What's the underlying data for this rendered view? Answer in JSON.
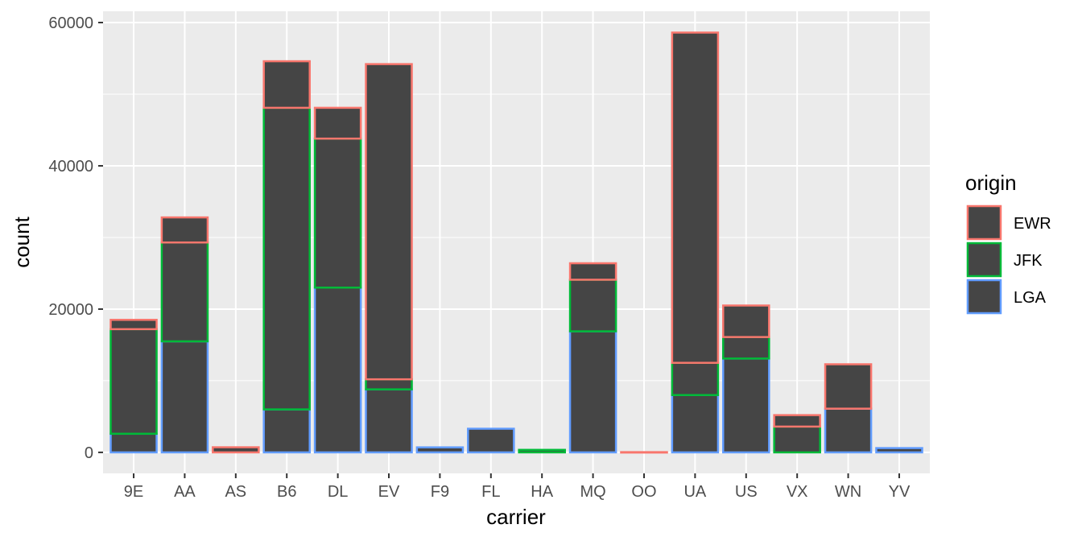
{
  "chart_data": {
    "type": "bar",
    "stacked": true,
    "xlabel": "carrier",
    "ylabel": "count",
    "ylim": [
      -2932,
      61575
    ],
    "yticks": [
      0,
      20000,
      40000,
      60000
    ],
    "ytick_labels": [
      "0",
      "20000",
      "40000",
      "60000"
    ],
    "grid": true,
    "panel_background": "#ebebeb",
    "bar_fill": "#454545",
    "legend_position": "right",
    "categories": [
      "9E",
      "AA",
      "AS",
      "B6",
      "DL",
      "EV",
      "F9",
      "FL",
      "HA",
      "MQ",
      "OO",
      "UA",
      "US",
      "VX",
      "WN",
      "YV"
    ],
    "legend": {
      "title": "origin"
    },
    "series": [
      {
        "name": "LGA",
        "color": "#619cff",
        "values": [
          2600,
          15500,
          0,
          6000,
          23000,
          8800,
          700,
          3300,
          0,
          16900,
          0,
          8000,
          13100,
          0,
          6100,
          600
        ]
      },
      {
        "name": "JFK",
        "color": "#00ba38",
        "values": [
          14600,
          13800,
          0,
          42100,
          20800,
          1400,
          0,
          0,
          350,
          7200,
          0,
          4500,
          3000,
          3600,
          0,
          0
        ]
      },
      {
        "name": "EWR",
        "color": "#f8766d",
        "values": [
          1300,
          3500,
          714,
          6500,
          4300,
          44000,
          0,
          0,
          0,
          2300,
          32,
          46100,
          4400,
          1600,
          6200,
          0
        ]
      }
    ],
    "legend_order": [
      "EWR",
      "JFK",
      "LGA"
    ]
  }
}
